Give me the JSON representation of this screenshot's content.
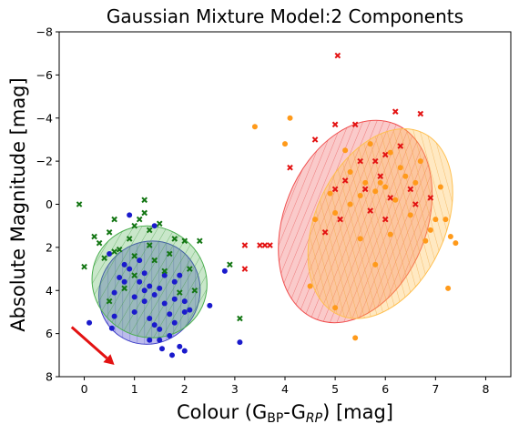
{
  "chart_data": {
    "type": "scatter",
    "title": "Gaussian Mixture Model:2 Components",
    "xlabel": {
      "main": "Colour (G",
      "sub1": "BP",
      "mid": "-G",
      "sub2": "RP",
      "end": ") [mag]"
    },
    "ylabel": "Absolute Magnitude [mag]",
    "xlim": [
      -0.5,
      8.5
    ],
    "ylim": [
      8,
      -8
    ],
    "y_inverted": true,
    "xticks": [
      0,
      1,
      2,
      3,
      4,
      5,
      6,
      7,
      8
    ],
    "yticks": [
      -8,
      -6,
      -4,
      -2,
      0,
      2,
      4,
      6,
      8
    ],
    "ytick_labels": [
      "−8",
      "−6",
      "−4",
      "−2",
      "0",
      "2",
      "4",
      "6",
      "8"
    ],
    "grid": false,
    "series": [
      {
        "color": "#1a1acc",
        "marker": "circle",
        "points": [
          [
            0.1,
            5.5
          ],
          [
            0.5,
            2.3
          ],
          [
            0.6,
            4.1
          ],
          [
            0.6,
            5.2
          ],
          [
            0.7,
            3.4
          ],
          [
            0.8,
            2.8
          ],
          [
            0.8,
            3.6
          ],
          [
            0.9,
            0.5
          ],
          [
            0.9,
            3.0
          ],
          [
            1.0,
            4.3
          ],
          [
            1.0,
            5.0
          ],
          [
            1.1,
            3.6
          ],
          [
            1.2,
            3.2
          ],
          [
            1.2,
            4.0
          ],
          [
            1.2,
            4.5
          ],
          [
            1.3,
            3.8
          ],
          [
            1.3,
            5.3
          ],
          [
            1.3,
            6.3
          ],
          [
            1.4,
            1.0
          ],
          [
            1.4,
            4.2
          ],
          [
            1.4,
            5.6
          ],
          [
            1.5,
            3.9
          ],
          [
            1.5,
            5.8
          ],
          [
            1.6,
            3.3
          ],
          [
            1.6,
            4.6
          ],
          [
            1.7,
            5.1
          ],
          [
            1.7,
            6.1
          ],
          [
            1.8,
            3.6
          ],
          [
            1.8,
            4.4
          ],
          [
            1.8,
            5.5
          ],
          [
            1.9,
            3.3
          ],
          [
            1.9,
            6.6
          ],
          [
            2.0,
            4.5
          ],
          [
            2.0,
            5.0
          ],
          [
            2.0,
            6.8
          ],
          [
            2.1,
            4.9
          ],
          [
            2.5,
            4.7
          ],
          [
            2.8,
            3.1
          ],
          [
            3.1,
            6.4
          ],
          [
            0.55,
            5.75
          ],
          [
            1.55,
            6.7
          ],
          [
            1.75,
            7.0
          ],
          [
            1.1,
            2.6
          ],
          [
            1.5,
            6.3
          ]
        ]
      },
      {
        "color": "#137613",
        "marker": "x",
        "points": [
          [
            -0.1,
            0.0
          ],
          [
            0.0,
            2.9
          ],
          [
            0.2,
            1.5
          ],
          [
            0.3,
            1.8
          ],
          [
            0.4,
            2.5
          ],
          [
            0.5,
            1.3
          ],
          [
            0.5,
            4.5
          ],
          [
            0.6,
            0.7
          ],
          [
            0.7,
            2.1
          ],
          [
            0.8,
            3.9
          ],
          [
            0.9,
            1.6
          ],
          [
            1.0,
            2.4
          ],
          [
            1.0,
            3.3
          ],
          [
            1.1,
            0.7
          ],
          [
            1.2,
            -0.2
          ],
          [
            1.2,
            0.4
          ],
          [
            1.3,
            1.2
          ],
          [
            1.3,
            1.9
          ],
          [
            1.4,
            2.6
          ],
          [
            1.5,
            0.9
          ],
          [
            1.6,
            3.1
          ],
          [
            1.7,
            2.3
          ],
          [
            1.8,
            1.6
          ],
          [
            1.9,
            4.1
          ],
          [
            2.0,
            1.7
          ],
          [
            2.1,
            3.0
          ],
          [
            2.2,
            4.0
          ],
          [
            2.3,
            1.7
          ],
          [
            2.9,
            2.8
          ],
          [
            3.1,
            5.3
          ],
          [
            0.6,
            2.2
          ],
          [
            1.0,
            1.0
          ]
        ]
      },
      {
        "color": "#e31212",
        "marker": "x",
        "points": [
          [
            5.05,
            -6.9
          ],
          [
            3.2,
            1.9
          ],
          [
            3.5,
            1.9
          ],
          [
            3.6,
            1.9
          ],
          [
            3.7,
            1.9
          ],
          [
            3.2,
            3.0
          ],
          [
            4.1,
            -1.7
          ],
          [
            4.6,
            -3.0
          ],
          [
            4.8,
            1.3
          ],
          [
            5.0,
            -3.7
          ],
          [
            5.0,
            -0.7
          ],
          [
            5.1,
            0.7
          ],
          [
            5.4,
            -3.7
          ],
          [
            5.5,
            -2.0
          ],
          [
            5.6,
            -0.7
          ],
          [
            5.8,
            -2.0
          ],
          [
            5.9,
            -1.3
          ],
          [
            6.0,
            0.7
          ],
          [
            6.1,
            -0.3
          ],
          [
            6.2,
            -4.3
          ],
          [
            6.3,
            -2.7
          ],
          [
            6.5,
            -0.7
          ],
          [
            6.6,
            0.0
          ],
          [
            6.7,
            -4.2
          ],
          [
            6.9,
            -0.3
          ],
          [
            5.2,
            -1.1
          ],
          [
            5.7,
            0.3
          ],
          [
            6.0,
            -2.3
          ]
        ]
      },
      {
        "color": "#ff9a1a",
        "marker": "circle",
        "points": [
          [
            3.4,
            -3.6
          ],
          [
            4.0,
            -2.8
          ],
          [
            4.1,
            -4.0
          ],
          [
            4.5,
            3.8
          ],
          [
            4.6,
            0.7
          ],
          [
            5.0,
            4.8
          ],
          [
            5.2,
            -2.5
          ],
          [
            5.3,
            -1.5
          ],
          [
            5.3,
            0.0
          ],
          [
            5.4,
            6.2
          ],
          [
            5.5,
            -0.4
          ],
          [
            5.5,
            1.6
          ],
          [
            5.6,
            -1.0
          ],
          [
            5.7,
            -2.8
          ],
          [
            5.8,
            -0.6
          ],
          [
            5.8,
            2.8
          ],
          [
            5.9,
            -1.0
          ],
          [
            6.0,
            -0.8
          ],
          [
            6.1,
            -2.4
          ],
          [
            6.2,
            -0.2
          ],
          [
            6.3,
            -1.7
          ],
          [
            6.4,
            -1.3
          ],
          [
            6.5,
            0.5
          ],
          [
            6.6,
            -1.0
          ],
          [
            6.7,
            -2.0
          ],
          [
            6.8,
            1.7
          ],
          [
            6.9,
            1.2
          ],
          [
            7.0,
            0.7
          ],
          [
            7.1,
            -0.8
          ],
          [
            7.2,
            0.7
          ],
          [
            7.25,
            3.9
          ],
          [
            7.3,
            1.5
          ],
          [
            7.4,
            1.8
          ],
          [
            5.0,
            0.4
          ],
          [
            6.1,
            1.4
          ],
          [
            4.9,
            -0.5
          ]
        ]
      }
    ],
    "ellipses": [
      {
        "center": [
          1.3,
          4.1
        ],
        "semi_axes": [
          1.05,
          2.3
        ],
        "angle_deg": -55,
        "color": "#4040c8",
        "fill_opacity": 0.35
      },
      {
        "center": [
          1.3,
          3.6
        ],
        "semi_axes": [
          1.1,
          2.7
        ],
        "angle_deg": -60,
        "color": "#4caf50",
        "fill_opacity": 0.3
      },
      {
        "center": [
          5.4,
          0.8
        ],
        "semi_axes": [
          2.1,
          3.3
        ],
        "angle_deg": -68,
        "color": "#f05050",
        "fill_opacity": 0.3
      },
      {
        "center": [
          5.9,
          0.9
        ],
        "semi_axes": [
          2.0,
          3.0
        ],
        "angle_deg": -65,
        "color": "#ffc050",
        "fill_opacity": 0.35
      }
    ],
    "arrow": {
      "from": [
        -0.25,
        5.7
      ],
      "to": [
        0.6,
        7.45
      ],
      "color": "#e31212"
    }
  }
}
